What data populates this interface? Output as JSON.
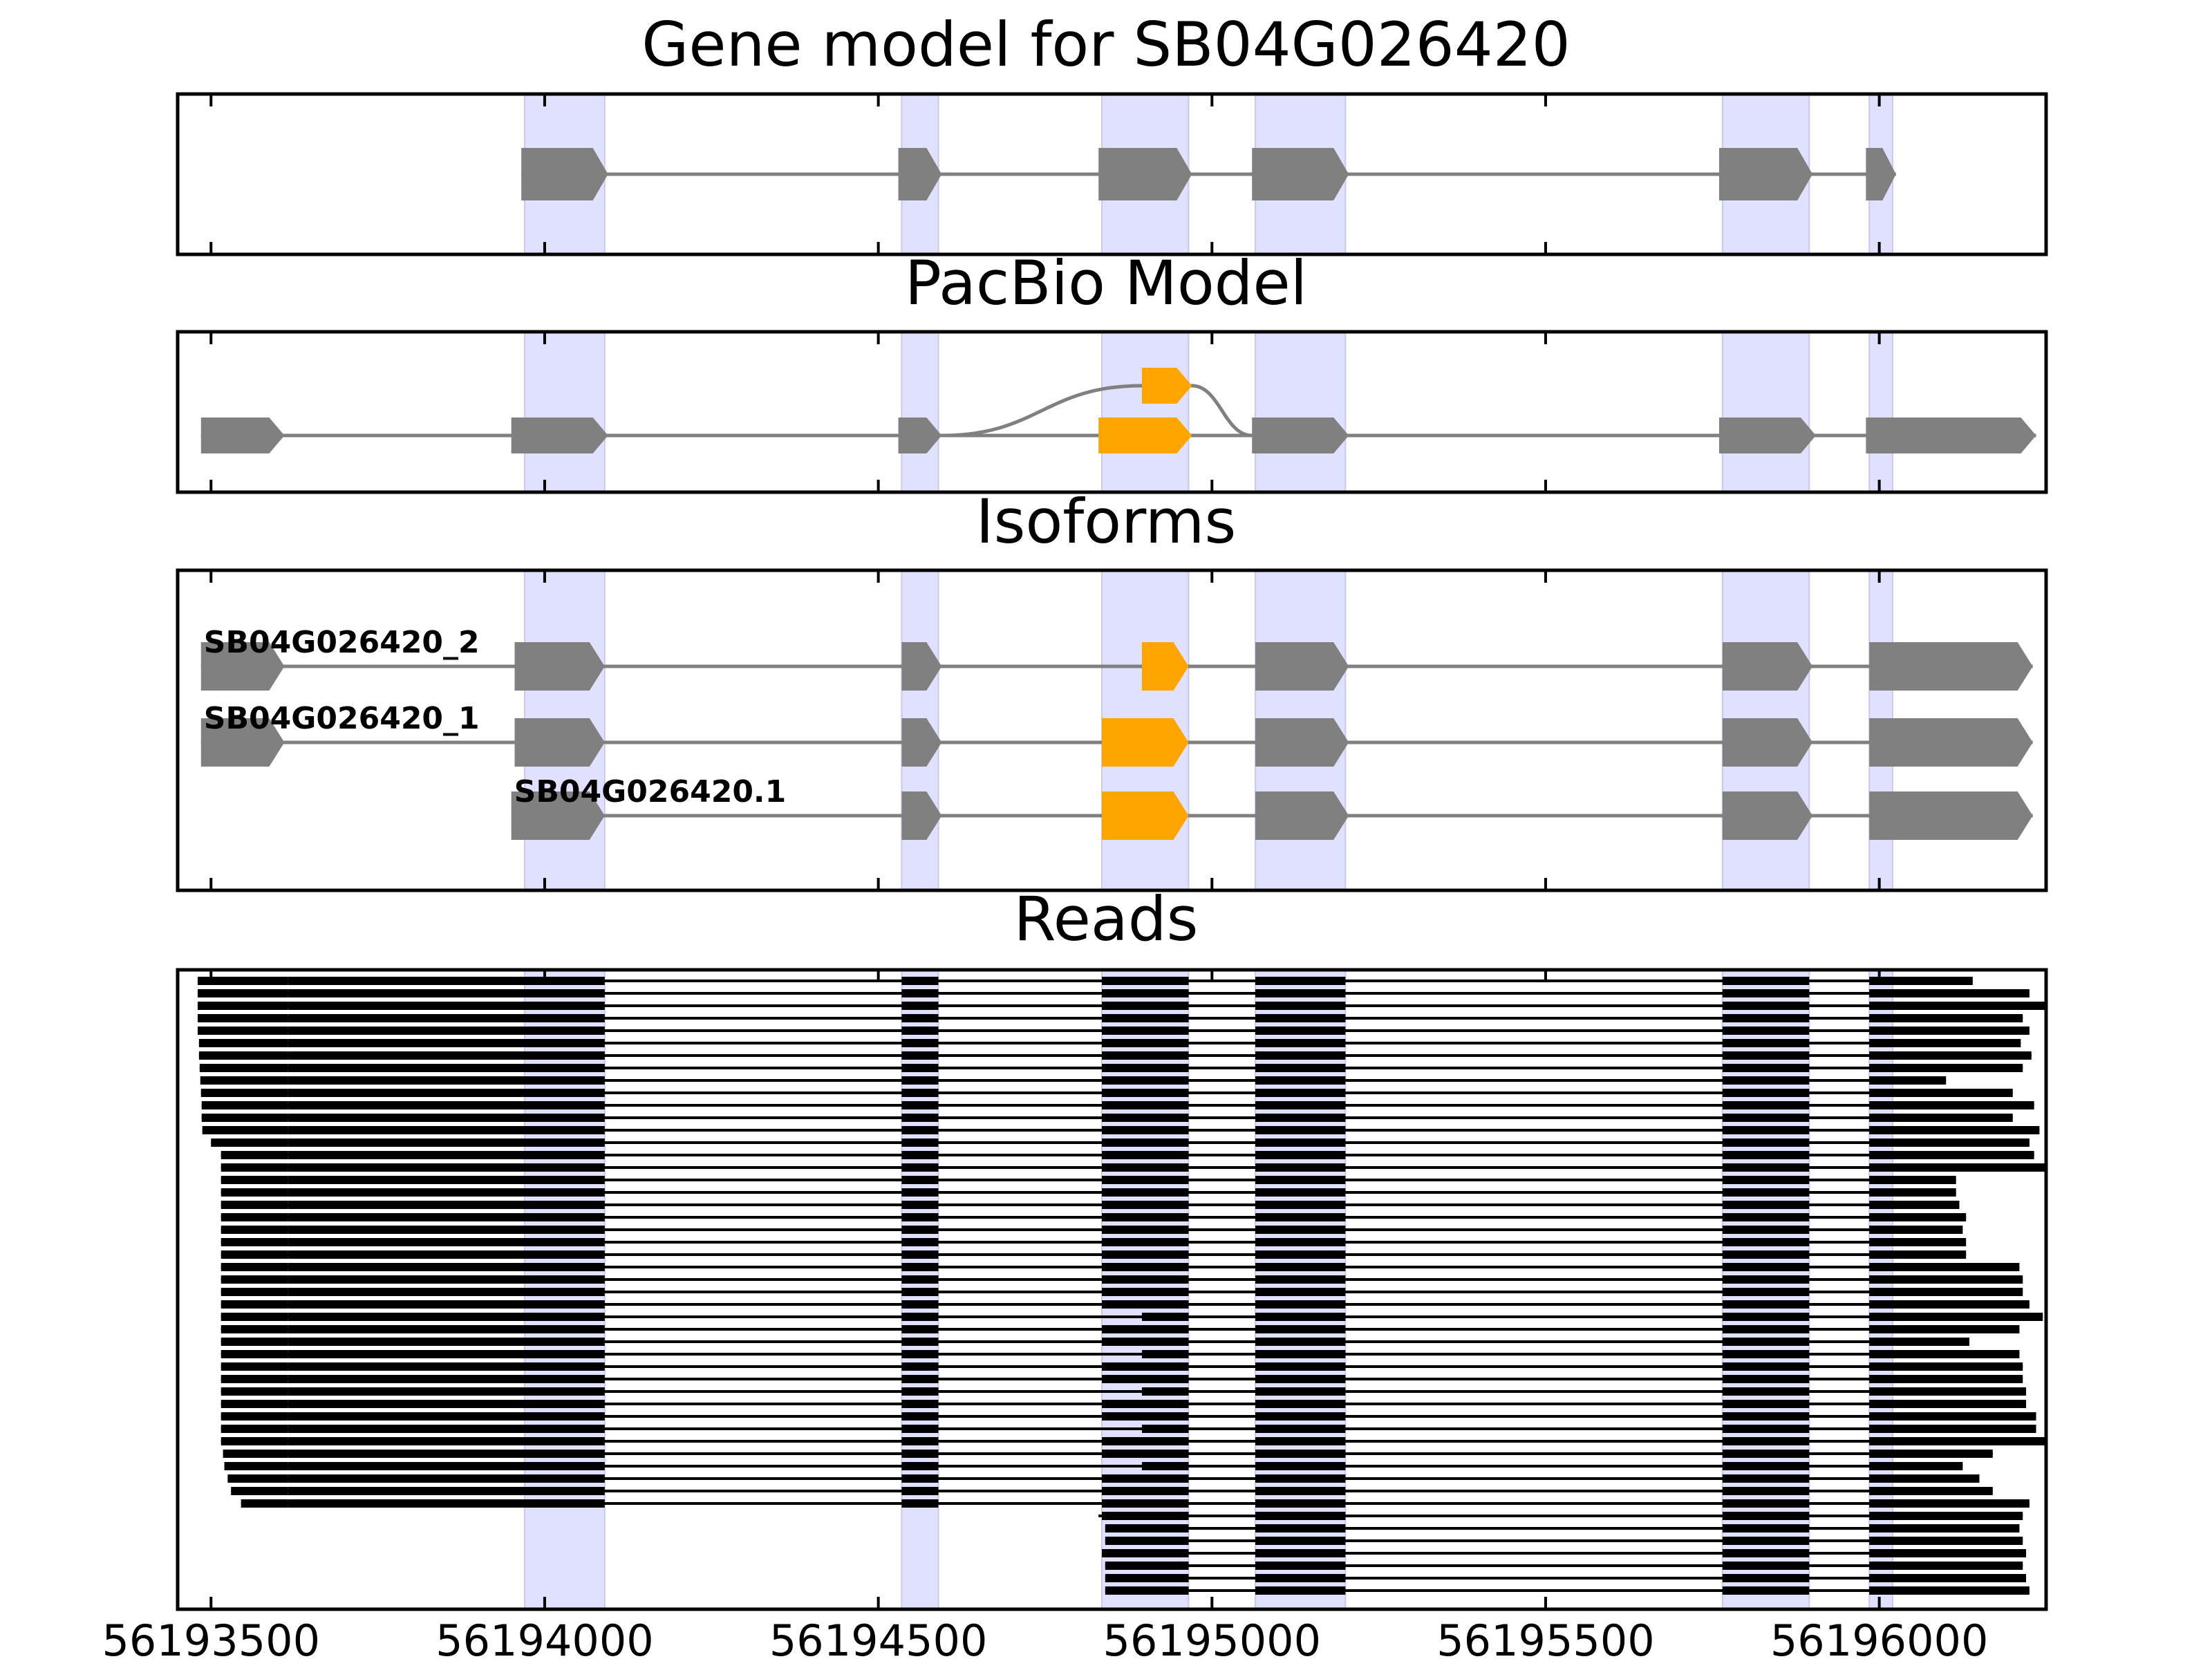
{
  "chart_data": {
    "type": "gene-structure",
    "xlim": [
      56193450,
      56196250
    ],
    "xticks": [
      56193500,
      56194000,
      56194500,
      56195000,
      56195500,
      56196000
    ],
    "colors": {
      "exon": "#808080",
      "alt_exon": "#FFA500",
      "highlight": "#E0E0FF",
      "read": "#000000",
      "intron": "#808080"
    },
    "highlight_regions": [
      [
        56193970,
        56194090
      ],
      [
        56194535,
        56194590
      ],
      [
        56194835,
        56194965
      ],
      [
        56195065,
        56195200
      ],
      [
        56195765,
        56195895
      ],
      [
        56195985,
        56196020
      ]
    ],
    "panels": [
      {
        "id": "gene",
        "title": "Gene model for SB04G026420",
        "tracks": [
          {
            "label": "",
            "exons": [
              [
                56193965,
                56194095
              ],
              [
                56194530,
                56194595
              ],
              [
                56194830,
                56194970
              ],
              [
                56195060,
                56195205
              ],
              [
                56195760,
                56195900
              ],
              [
                56195980,
                56196025
              ]
            ],
            "alt_exons": []
          }
        ]
      },
      {
        "id": "pacbio",
        "title": "PacBio Model",
        "tracks": [
          {
            "label": "",
            "exons": [
              [
                56193485,
                56193610
              ],
              [
                56193950,
                56194095
              ],
              [
                56194530,
                56194595
              ],
              [
                56195060,
                56195205
              ],
              [
                56195760,
                56195905
              ],
              [
                56195980,
                56196235
              ]
            ],
            "alt_exons": [
              [
                56194830,
                56194970
              ]
            ]
          }
        ],
        "alt_branch": {
          "start": 56194595,
          "end": 56195060,
          "exon": [
            56194895,
            56194970
          ]
        }
      },
      {
        "id": "isoforms",
        "title": "Isoforms",
        "tracks": [
          {
            "label": "SB04G026420_2",
            "exons": [
              [
                56193485,
                56193610
              ],
              [
                56193955,
                56194090
              ],
              [
                56194535,
                56194595
              ],
              [
                56195065,
                56195205
              ],
              [
                56195765,
                56195900
              ],
              [
                56195985,
                56196230
              ]
            ],
            "alt_exons": [
              [
                56194895,
                56194965
              ]
            ]
          },
          {
            "label": "SB04G026420_1",
            "exons": [
              [
                56193485,
                56193610
              ],
              [
                56193955,
                56194090
              ],
              [
                56194535,
                56194595
              ],
              [
                56195065,
                56195205
              ],
              [
                56195765,
                56195900
              ],
              [
                56195985,
                56196230
              ]
            ],
            "alt_exons": [
              [
                56194835,
                56194965
              ]
            ]
          },
          {
            "label": "SB04G026420.1",
            "exons": [
              [
                56193950,
                56194090
              ],
              [
                56194535,
                56194595
              ],
              [
                56195065,
                56195205
              ],
              [
                56195765,
                56195900
              ],
              [
                56195985,
                56196230
              ]
            ],
            "alt_exons": [
              [
                56194835,
                56194965
              ]
            ]
          }
        ]
      },
      {
        "id": "reads",
        "title": "Reads",
        "read_count": 50,
        "read_starts": [
          56193480,
          56193480,
          56193480,
          56193480,
          56193480,
          56193482,
          56193482,
          56193483,
          56193484,
          56193485,
          56193486,
          56193486,
          56193487,
          56193500,
          56193515,
          56193515,
          56193515,
          56193515,
          56193515,
          56193515,
          56193515,
          56193515,
          56193515,
          56193515,
          56193515,
          56193515,
          56193515,
          56193515,
          56193515,
          56193515,
          56193515,
          56193515,
          56193515,
          56193515,
          56193515,
          56193515,
          56193515,
          56193515,
          56193518,
          56193520,
          56193525,
          56193530,
          56193545,
          56194830,
          56194840,
          56194840,
          56194835,
          56194840,
          56194840,
          56194840
        ],
        "read_ends": [
          56196140,
          56196225,
          56196250,
          56196215,
          56196225,
          56196212,
          56196228,
          56196215,
          56196100,
          56196200,
          56196232,
          56196200,
          56196240,
          56196225,
          56196232,
          56196250,
          56196115,
          56196115,
          56196120,
          56196130,
          56196125,
          56196130,
          56196130,
          56196210,
          56196215,
          56196215,
          56196225,
          56196245,
          56196210,
          56196135,
          56196210,
          56196215,
          56196215,
          56196220,
          56196220,
          56196235,
          56196235,
          56196250,
          56196170,
          56196125,
          56196150,
          56196170,
          56196225,
          56196215,
          56196210,
          56196215,
          56196220,
          56196215,
          56196220,
          56196225
        ],
        "alt_exon5_from_index": [
          27,
          40
        ]
      }
    ],
    "xlabel": "",
    "ylabel": ""
  }
}
